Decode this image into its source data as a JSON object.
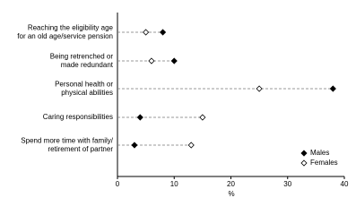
{
  "chart_data": {
    "type": "dot",
    "categories": [
      "Reaching the eligibility age\nfor an old age/service pension",
      "Being retrenched or\nmade redundant",
      "Personal health or\nphysical abilities",
      "Caring responsibilities",
      "Spend more time with family/\nretirement of partner"
    ],
    "series": [
      {
        "name": "Males",
        "color": "#000000",
        "values": [
          8,
          10,
          38,
          4,
          3
        ]
      },
      {
        "name": "Females",
        "color": "#ffffff",
        "values": [
          5,
          6,
          25,
          15,
          13
        ]
      }
    ],
    "x_label": "%",
    "xlim": [
      0,
      40
    ],
    "xticks": [
      0,
      10,
      20,
      30,
      40
    ],
    "legend": "lower right"
  }
}
